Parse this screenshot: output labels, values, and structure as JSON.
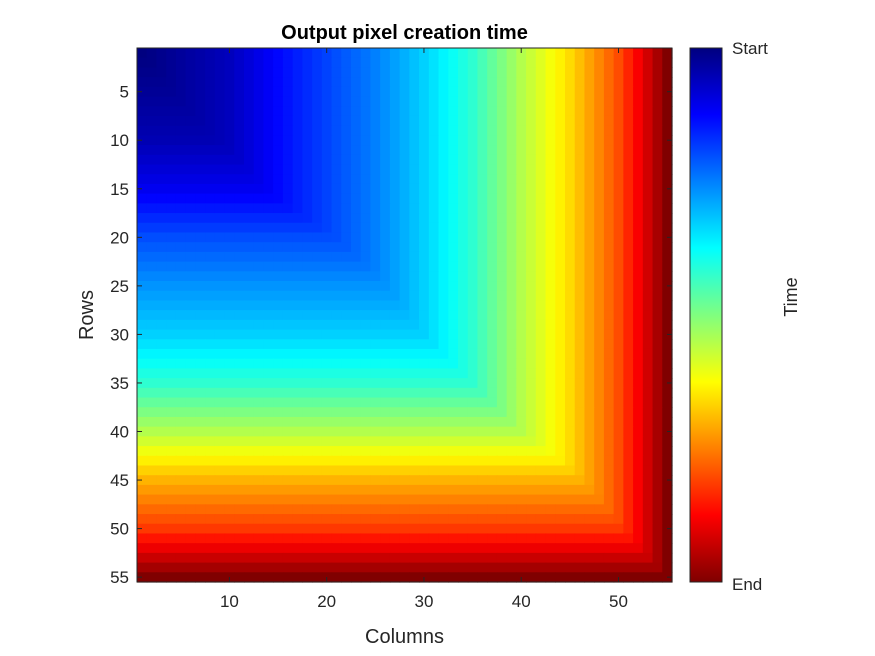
{
  "chart_data": {
    "type": "heatmap",
    "title": "Output pixel creation time",
    "xlabel": "Columns",
    "ylabel": "Rows",
    "rows": 55,
    "columns": 55,
    "xlim": [
      0.5,
      55.5
    ],
    "ylim": [
      0.5,
      55.5
    ],
    "y_direction": "reversed",
    "x_ticks": [
      10,
      20,
      30,
      40,
      50
    ],
    "y_ticks": [
      5,
      10,
      15,
      20,
      25,
      30,
      35,
      40,
      45,
      50,
      55
    ],
    "colormap": "jet",
    "colorbar": {
      "title": "Time",
      "top_label": "Start",
      "bottom_label": "End"
    },
    "value_model": "creation time rises from the top-left corner (earliest) toward the bottom and right edges (latest); each cell's time is the later of its row-stage and column-stage times",
    "row_profile": [
      [
        1,
        0.0
      ],
      [
        10,
        0.05
      ],
      [
        15,
        0.11
      ],
      [
        20,
        0.2
      ],
      [
        25,
        0.27
      ],
      [
        30,
        0.33
      ],
      [
        35,
        0.42
      ],
      [
        40,
        0.55
      ],
      [
        45,
        0.7
      ],
      [
        50,
        0.82
      ],
      [
        55,
        1.0
      ]
    ],
    "column_profile": [
      [
        1,
        0.0
      ],
      [
        10,
        0.06
      ],
      [
        15,
        0.13
      ],
      [
        20,
        0.19
      ],
      [
        25,
        0.25
      ],
      [
        30,
        0.33
      ],
      [
        35,
        0.42
      ],
      [
        40,
        0.55
      ],
      [
        45,
        0.66
      ],
      [
        50,
        0.8
      ],
      [
        55,
        1.0
      ]
    ],
    "grid": false
  }
}
